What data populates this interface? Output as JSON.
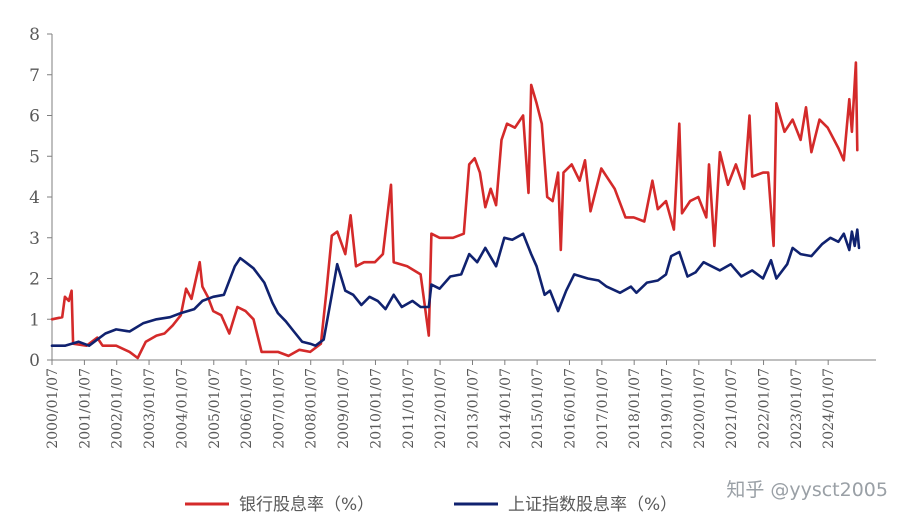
{
  "chart_data": {
    "type": "line",
    "title": "",
    "xlabel": "",
    "ylabel": "",
    "ylim": [
      0,
      8
    ],
    "yticks": [
      "0",
      "1",
      "2",
      "3",
      "4",
      "5",
      "6",
      "7",
      "8"
    ],
    "xlim": [
      "2000/01/07",
      "2025/06/30"
    ],
    "xticks": [
      "2000/01/07",
      "2001/01/07",
      "2002/01/07",
      "2003/01/07",
      "2004/01/07",
      "2005/01/07",
      "2006/01/07",
      "2007/01/07",
      "2008/01/07",
      "2009/01/07",
      "2010/01/07",
      "2011/01/07",
      "2012/01/07",
      "2013/01/07",
      "2014/01/07",
      "2015/01/07",
      "2016/01/07",
      "2017/01/07",
      "2018/01/07",
      "2019/01/07",
      "2020/01/07",
      "2021/01/07",
      "2022/01/07",
      "2023/01/07",
      "2024/01/07"
    ],
    "grid": false,
    "legend_position": "bottom",
    "series": [
      {
        "name": "银行股息率（%）",
        "color": "#d42a2a",
        "points": [
          [
            "2000/01/07",
            1.0
          ],
          [
            "2000/05/01",
            1.05
          ],
          [
            "2000/06/01",
            1.55
          ],
          [
            "2000/07/15",
            1.45
          ],
          [
            "2000/08/15",
            1.7
          ],
          [
            "2000/09/01",
            0.4
          ],
          [
            "2001/02/01",
            0.35
          ],
          [
            "2001/06/01",
            0.55
          ],
          [
            "2001/08/01",
            0.35
          ],
          [
            "2002/01/01",
            0.35
          ],
          [
            "2002/06/01",
            0.2
          ],
          [
            "2002/09/01",
            0.05
          ],
          [
            "2002/12/01",
            0.45
          ],
          [
            "2003/04/01",
            0.6
          ],
          [
            "2003/07/01",
            0.65
          ],
          [
            "2003/10/01",
            0.85
          ],
          [
            "2004/01/01",
            1.1
          ],
          [
            "2004/03/01",
            1.75
          ],
          [
            "2004/05/01",
            1.5
          ],
          [
            "2004/08/01",
            2.4
          ],
          [
            "2004/09/01",
            1.8
          ],
          [
            "2004/11/01",
            1.55
          ],
          [
            "2005/01/01",
            1.2
          ],
          [
            "2005/04/01",
            1.1
          ],
          [
            "2005/07/01",
            0.65
          ],
          [
            "2005/10/01",
            1.3
          ],
          [
            "2006/01/01",
            1.2
          ],
          [
            "2006/04/01",
            1.0
          ],
          [
            "2006/07/01",
            0.2
          ],
          [
            "2007/01/01",
            0.2
          ],
          [
            "2007/05/01",
            0.1
          ],
          [
            "2007/09/01",
            0.25
          ],
          [
            "2008/01/01",
            0.2
          ],
          [
            "2008/05/01",
            0.4
          ],
          [
            "2008/07/01",
            1.65
          ],
          [
            "2008/09/01",
            3.05
          ],
          [
            "2008/11/01",
            3.15
          ],
          [
            "2009/02/01",
            2.6
          ],
          [
            "2009/04/01",
            3.55
          ],
          [
            "2009/06/01",
            2.3
          ],
          [
            "2009/09/01",
            2.4
          ],
          [
            "2010/01/01",
            2.4
          ],
          [
            "2010/04/01",
            2.6
          ],
          [
            "2010/07/01",
            4.3
          ],
          [
            "2010/08/01",
            2.4
          ],
          [
            "2011/01/01",
            2.3
          ],
          [
            "2011/06/01",
            2.1
          ],
          [
            "2011/09/01",
            0.6
          ],
          [
            "2011/10/01",
            3.1
          ],
          [
            "2012/01/01",
            3.0
          ],
          [
            "2012/06/01",
            3.0
          ],
          [
            "2012/10/01",
            3.1
          ],
          [
            "2012/12/01",
            4.8
          ],
          [
            "2013/02/01",
            4.95
          ],
          [
            "2013/04/01",
            4.6
          ],
          [
            "2013/06/01",
            3.75
          ],
          [
            "2013/08/01",
            4.2
          ],
          [
            "2013/10/01",
            3.8
          ],
          [
            "2013/12/01",
            5.4
          ],
          [
            "2014/02/01",
            5.8
          ],
          [
            "2014/05/01",
            5.7
          ],
          [
            "2014/08/01",
            6.0
          ],
          [
            "2014/10/01",
            4.1
          ],
          [
            "2014/11/01",
            6.75
          ],
          [
            "2015/01/01",
            6.3
          ],
          [
            "2015/03/01",
            5.8
          ],
          [
            "2015/05/01",
            4.0
          ],
          [
            "2015/07/01",
            3.9
          ],
          [
            "2015/09/01",
            4.6
          ],
          [
            "2015/10/01",
            2.7
          ],
          [
            "2015/11/01",
            4.6
          ],
          [
            "2016/02/01",
            4.8
          ],
          [
            "2016/05/01",
            4.4
          ],
          [
            "2016/07/01",
            4.9
          ],
          [
            "2016/09/01",
            3.65
          ],
          [
            "2017/01/01",
            4.7
          ],
          [
            "2017/06/01",
            4.2
          ],
          [
            "2017/10/01",
            3.5
          ],
          [
            "2018/01/01",
            3.5
          ],
          [
            "2018/05/01",
            3.4
          ],
          [
            "2018/08/01",
            4.4
          ],
          [
            "2018/10/01",
            3.7
          ],
          [
            "2019/01/01",
            3.9
          ],
          [
            "2019/04/01",
            3.2
          ],
          [
            "2019/06/01",
            5.8
          ],
          [
            "2019/07/01",
            3.6
          ],
          [
            "2019/10/01",
            3.9
          ],
          [
            "2020/01/01",
            4.0
          ],
          [
            "2020/04/01",
            3.5
          ],
          [
            "2020/05/01",
            4.8
          ],
          [
            "2020/07/01",
            2.8
          ],
          [
            "2020/09/01",
            5.1
          ],
          [
            "2020/12/01",
            4.3
          ],
          [
            "2021/03/01",
            4.8
          ],
          [
            "2021/06/01",
            4.2
          ],
          [
            "2021/08/01",
            6.0
          ],
          [
            "2021/09/01",
            4.5
          ],
          [
            "2022/01/01",
            4.6
          ],
          [
            "2022/03/01",
            4.6
          ],
          [
            "2022/05/01",
            2.8
          ],
          [
            "2022/06/01",
            6.3
          ],
          [
            "2022/09/01",
            5.6
          ],
          [
            "2022/12/01",
            5.9
          ],
          [
            "2023/03/01",
            5.4
          ],
          [
            "2023/05/01",
            6.2
          ],
          [
            "2023/07/01",
            5.1
          ],
          [
            "2023/10/01",
            5.9
          ],
          [
            "2024/01/01",
            5.7
          ],
          [
            "2024/05/01",
            5.2
          ],
          [
            "2024/07/01",
            4.9
          ],
          [
            "2024/09/01",
            6.4
          ],
          [
            "2024/10/01",
            5.6
          ],
          [
            "2024/11/15",
            7.3
          ],
          [
            "2024/12/01",
            5.15
          ]
        ]
      },
      {
        "name": "上证指数股息率（%）",
        "color": "#10226f",
        "points": [
          [
            "2000/01/07",
            0.35
          ],
          [
            "2000/06/01",
            0.35
          ],
          [
            "2000/11/01",
            0.45
          ],
          [
            "2001/03/01",
            0.35
          ],
          [
            "2001/06/01",
            0.5
          ],
          [
            "2001/09/01",
            0.65
          ],
          [
            "2002/01/01",
            0.75
          ],
          [
            "2002/06/01",
            0.7
          ],
          [
            "2002/11/01",
            0.9
          ],
          [
            "2003/04/01",
            1.0
          ],
          [
            "2003/09/01",
            1.05
          ],
          [
            "2004/01/01",
            1.15
          ],
          [
            "2004/06/01",
            1.25
          ],
          [
            "2004/09/01",
            1.45
          ],
          [
            "2005/01/01",
            1.55
          ],
          [
            "2005/05/01",
            1.6
          ],
          [
            "2005/09/01",
            2.3
          ],
          [
            "2005/11/01",
            2.5
          ],
          [
            "2006/01/01",
            2.4
          ],
          [
            "2006/04/01",
            2.25
          ],
          [
            "2006/08/01",
            1.9
          ],
          [
            "2006/11/01",
            1.4
          ],
          [
            "2007/01/01",
            1.15
          ],
          [
            "2007/04/01",
            0.95
          ],
          [
            "2007/07/01",
            0.7
          ],
          [
            "2007/10/01",
            0.45
          ],
          [
            "2008/01/01",
            0.4
          ],
          [
            "2008/03/01",
            0.35
          ],
          [
            "2008/06/01",
            0.5
          ],
          [
            "2008/09/01",
            1.6
          ],
          [
            "2008/11/01",
            2.35
          ],
          [
            "2009/02/01",
            1.7
          ],
          [
            "2009/05/01",
            1.6
          ],
          [
            "2009/08/01",
            1.35
          ],
          [
            "2009/11/01",
            1.55
          ],
          [
            "2010/02/01",
            1.45
          ],
          [
            "2010/05/01",
            1.25
          ],
          [
            "2010/08/01",
            1.6
          ],
          [
            "2010/11/01",
            1.3
          ],
          [
            "2011/03/01",
            1.45
          ],
          [
            "2011/06/01",
            1.3
          ],
          [
            "2011/09/01",
            1.3
          ],
          [
            "2011/10/01",
            1.85
          ],
          [
            "2012/01/01",
            1.75
          ],
          [
            "2012/05/01",
            2.05
          ],
          [
            "2012/09/01",
            2.1
          ],
          [
            "2012/12/01",
            2.6
          ],
          [
            "2013/03/01",
            2.4
          ],
          [
            "2013/06/01",
            2.75
          ],
          [
            "2013/10/01",
            2.3
          ],
          [
            "2014/01/01",
            3.0
          ],
          [
            "2014/04/01",
            2.95
          ],
          [
            "2014/08/01",
            3.1
          ],
          [
            "2014/11/01",
            2.6
          ],
          [
            "2015/01/01",
            2.3
          ],
          [
            "2015/04/01",
            1.6
          ],
          [
            "2015/06/01",
            1.7
          ],
          [
            "2015/09/01",
            1.2
          ],
          [
            "2015/12/01",
            1.7
          ],
          [
            "2016/03/01",
            2.1
          ],
          [
            "2016/08/01",
            2.0
          ],
          [
            "2016/12/01",
            1.95
          ],
          [
            "2017/03/01",
            1.8
          ],
          [
            "2017/08/01",
            1.65
          ],
          [
            "2017/12/01",
            1.8
          ],
          [
            "2018/02/01",
            1.65
          ],
          [
            "2018/06/01",
            1.9
          ],
          [
            "2018/10/01",
            1.95
          ],
          [
            "2019/01/01",
            2.1
          ],
          [
            "2019/03/01",
            2.55
          ],
          [
            "2019/06/01",
            2.65
          ],
          [
            "2019/09/01",
            2.05
          ],
          [
            "2019/12/01",
            2.15
          ],
          [
            "2020/03/01",
            2.4
          ],
          [
            "2020/06/01",
            2.3
          ],
          [
            "2020/09/01",
            2.2
          ],
          [
            "2021/01/01",
            2.35
          ],
          [
            "2021/05/01",
            2.05
          ],
          [
            "2021/09/01",
            2.2
          ],
          [
            "2022/01/01",
            2.0
          ],
          [
            "2022/04/01",
            2.45
          ],
          [
            "2022/06/01",
            2.0
          ],
          [
            "2022/10/01",
            2.35
          ],
          [
            "2022/12/01",
            2.75
          ],
          [
            "2023/03/01",
            2.6
          ],
          [
            "2023/07/01",
            2.55
          ],
          [
            "2023/11/01",
            2.85
          ],
          [
            "2024/02/01",
            3.0
          ],
          [
            "2024/05/01",
            2.9
          ],
          [
            "2024/07/01",
            3.1
          ],
          [
            "2024/09/01",
            2.7
          ],
          [
            "2024/10/01",
            3.15
          ],
          [
            "2024/11/01",
            2.8
          ],
          [
            "2024/12/01",
            3.2
          ],
          [
            "2024/12/20",
            2.75
          ]
        ]
      }
    ]
  },
  "watermark": "知乎 @yysct2005"
}
